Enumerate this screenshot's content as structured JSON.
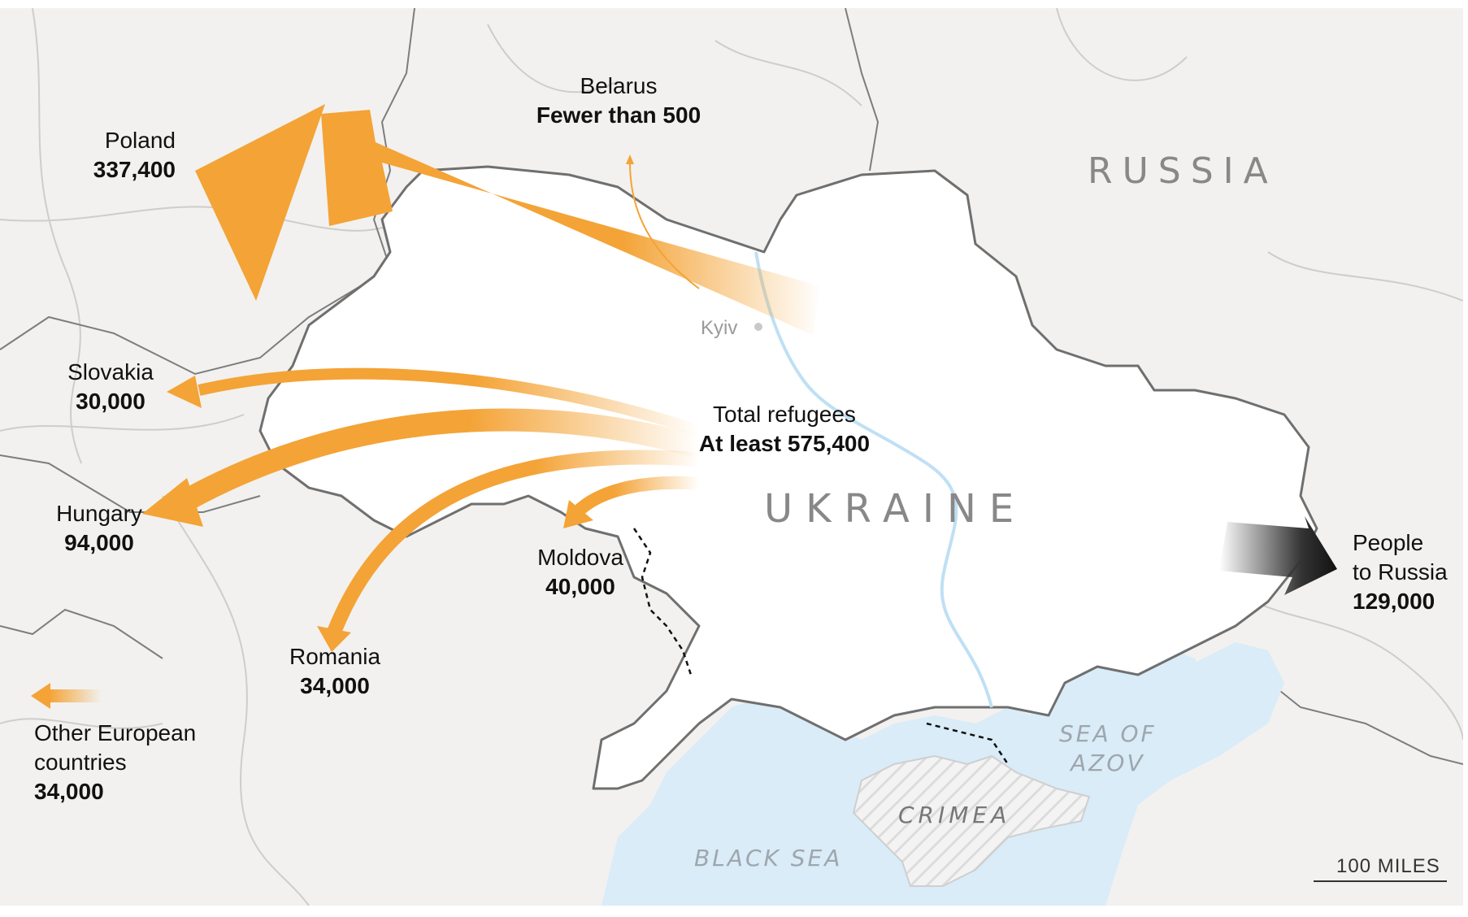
{
  "colors": {
    "land": "#f2f1ef",
    "ukraine": "#ffffff",
    "water": "#d9ecf8",
    "border": "#666666",
    "flow": "#f4a336",
    "russia_flow": "#2f2f2f"
  },
  "regions": {
    "russia": "RUSSIA",
    "ukraine": "UKRAINE",
    "crimea": "CRIMEA",
    "black_sea": "BLACK SEA",
    "sea_of_azov_1": "SEA OF",
    "sea_of_azov_2": "AZOV"
  },
  "cities": {
    "kyiv": "Kyiv"
  },
  "flows": [
    {
      "key": "poland",
      "name": "Poland",
      "value": "337,400",
      "refugees": 337400
    },
    {
      "key": "belarus",
      "name": "Belarus",
      "value": "Fewer than 500",
      "refugees": 500
    },
    {
      "key": "slovakia",
      "name": "Slovakia",
      "value": "30,000",
      "refugees": 30000
    },
    {
      "key": "hungary",
      "name": "Hungary",
      "value": "94,000",
      "refugees": 94000
    },
    {
      "key": "moldova",
      "name": "Moldova",
      "value": "40,000",
      "refugees": 40000
    },
    {
      "key": "romania",
      "name": "Romania",
      "value": "34,000",
      "refugees": 34000
    },
    {
      "key": "other",
      "name_line1": "Other European",
      "name_line2": "countries",
      "value": "34,000",
      "refugees": 34000
    },
    {
      "key": "russia",
      "name_line1": "People",
      "name_line2": "to Russia",
      "value": "129,000",
      "refugees": 129000
    }
  ],
  "total": {
    "label": "Total refugees",
    "value": "At least 575,400"
  },
  "scale_bar": {
    "label": "100 MILES"
  }
}
